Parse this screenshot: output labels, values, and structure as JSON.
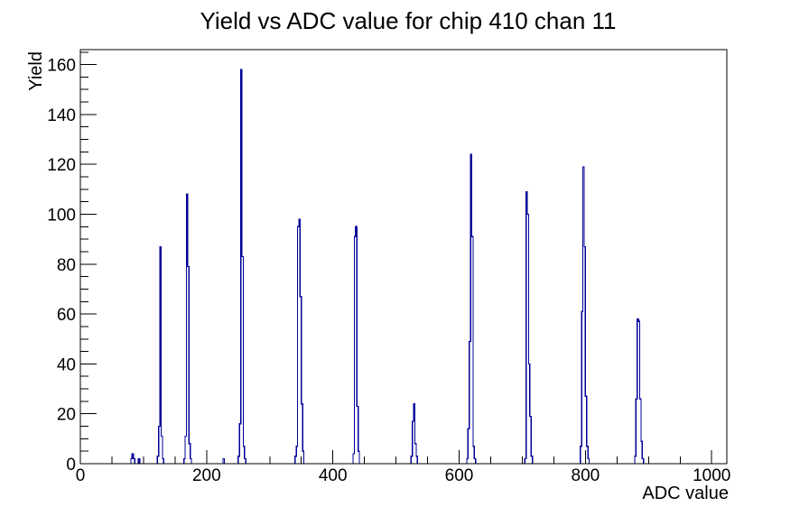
{
  "chart_data": {
    "type": "bar",
    "title": "Yield vs ADC value for chip 410 chan 11",
    "xlabel": "ADC value",
    "ylabel": "Yield",
    "xlim": [
      0,
      1024
    ],
    "ylim": [
      0,
      166
    ],
    "x_major_ticks": [
      0,
      200,
      400,
      600,
      800,
      1000
    ],
    "x_minor_step": 50,
    "y_major_ticks": [
      0,
      20,
      40,
      60,
      80,
      100,
      120,
      140,
      160
    ],
    "y_minor_step": 5,
    "grid": false,
    "legend": null,
    "background_color": "#ffffff",
    "line_color": "#000099",
    "bin_width": 2,
    "peaks": [
      {
        "center": 85,
        "height": 4
      },
      {
        "center": 126,
        "height": 87
      },
      {
        "center": 169,
        "height": 108
      },
      {
        "center": 255,
        "height": 158
      },
      {
        "center": 347,
        "height": 98
      },
      {
        "center": 437,
        "height": 95
      },
      {
        "center": 529,
        "height": 24
      },
      {
        "center": 619,
        "height": 124
      },
      {
        "center": 707,
        "height": 109
      },
      {
        "center": 797,
        "height": 119
      },
      {
        "center": 884,
        "height": 58
      }
    ],
    "bins": [
      [
        80,
        2
      ],
      [
        82,
        4
      ],
      [
        84,
        2
      ],
      [
        92,
        2
      ],
      [
        122,
        3
      ],
      [
        124,
        15
      ],
      [
        126,
        87
      ],
      [
        128,
        11
      ],
      [
        130,
        2
      ],
      [
        164,
        2
      ],
      [
        166,
        11
      ],
      [
        168,
        108
      ],
      [
        170,
        79
      ],
      [
        172,
        8
      ],
      [
        174,
        2
      ],
      [
        226,
        2
      ],
      [
        250,
        3
      ],
      [
        252,
        16
      ],
      [
        254,
        158
      ],
      [
        256,
        83
      ],
      [
        258,
        7
      ],
      [
        260,
        2
      ],
      [
        340,
        3
      ],
      [
        342,
        7
      ],
      [
        344,
        95
      ],
      [
        346,
        98
      ],
      [
        348,
        67
      ],
      [
        350,
        24
      ],
      [
        352,
        5
      ],
      [
        432,
        4
      ],
      [
        434,
        91
      ],
      [
        436,
        95
      ],
      [
        438,
        23
      ],
      [
        440,
        5
      ],
      [
        524,
        3
      ],
      [
        526,
        17
      ],
      [
        528,
        24
      ],
      [
        530,
        8
      ],
      [
        532,
        3
      ],
      [
        612,
        2
      ],
      [
        614,
        14
      ],
      [
        616,
        49
      ],
      [
        618,
        124
      ],
      [
        620,
        91
      ],
      [
        622,
        7
      ],
      [
        624,
        2
      ],
      [
        704,
        2
      ],
      [
        706,
        109
      ],
      [
        708,
        100
      ],
      [
        710,
        40
      ],
      [
        712,
        19
      ],
      [
        714,
        3
      ],
      [
        792,
        7
      ],
      [
        794,
        61
      ],
      [
        796,
        119
      ],
      [
        798,
        87
      ],
      [
        800,
        27
      ],
      [
        802,
        7
      ],
      [
        804,
        2
      ],
      [
        878,
        3
      ],
      [
        880,
        26
      ],
      [
        882,
        58
      ],
      [
        884,
        57
      ],
      [
        886,
        26
      ],
      [
        888,
        9
      ],
      [
        890,
        2
      ]
    ]
  }
}
